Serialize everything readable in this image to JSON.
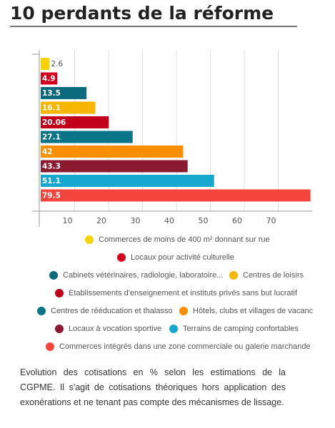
{
  "chart_data": {
    "type": "bar",
    "orientation": "horizontal",
    "title": "10 perdants de la réforme",
    "categories": [
      "Commerces de moins de 400 m² donnant sur rue",
      "Locaux pour activité culturelle",
      "Cabinets vétérinaires, radiologie, laboratoire...",
      "Centres de loisirs",
      "Etablissements d'enseignement et instituts privés sans but lucratif",
      "Centres de rééducation et thalasso",
      "Hôtels, clubs et villages de vacanc",
      "Locaux à vocation sportive",
      "Terrains de camping confortables",
      "Commerces intégrés dans une zone commerciale ou galerie marchande"
    ],
    "values": [
      2.6,
      4.9,
      13.5,
      16.1,
      20.06,
      27.1,
      42,
      43.3,
      51.1,
      79.5
    ],
    "colors": [
      "#f6d300",
      "#d5001d",
      "#0b6a7c",
      "#f8b500",
      "#c2001b",
      "#0a7489",
      "#f98e00",
      "#8b1a30",
      "#17a8d0",
      "#f4453d"
    ],
    "xlim": [
      0,
      80
    ],
    "xticks": [
      10,
      20,
      30,
      40,
      50,
      60,
      70
    ],
    "grid": true
  },
  "caption": "Evolution des cotisations en % selon les estimations de la CGPME. Il s'agit de cotisations théoriques hors application des exonérations et ne tenant pas compte des mécanismes de lissage."
}
